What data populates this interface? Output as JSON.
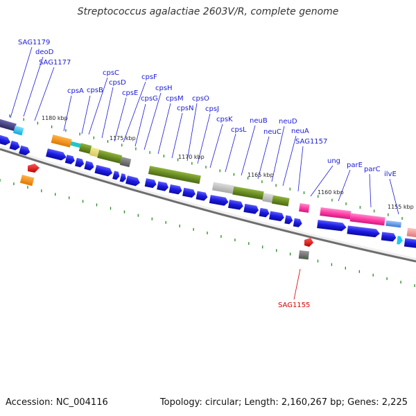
{
  "title": "Streptococcus agalactiae 2603V/R, complete genome",
  "footer": {
    "accession": "Accession: NC_004116",
    "topology": "Topology: circular; Length: 2,160,267 bp; Genes: 2,225"
  },
  "colors": {
    "backbone": "#777777",
    "forward_cds": "#1a1ae0",
    "gene_label": "#1a1ad6",
    "rna_label": "#d40000",
    "tick": "#1e8a1e",
    "cps": "#6b8e23",
    "cog_grey": "#bbbbbb",
    "cog_pink": "#ff3ea5",
    "cog_orange": "#ff8c00",
    "cog_navy": "#3d3a7a",
    "cog_cyan": "#1ec8f0"
  },
  "ticks": [
    "1180 kbp",
    "1175 kbp",
    "1170 kbp",
    "1165 kbp",
    "1160 kbp",
    "1155 kbp"
  ],
  "gene_labels": [
    {
      "key": "sag1179",
      "text": "SAG1179"
    },
    {
      "key": "deod",
      "text": "deoD"
    },
    {
      "key": "sag1177",
      "text": "SAG1177"
    },
    {
      "key": "cpsa",
      "text": "cpsA"
    },
    {
      "key": "cpsb",
      "text": "cpsB"
    },
    {
      "key": "cpsc",
      "text": "cpsC"
    },
    {
      "key": "cpsd",
      "text": "cpsD"
    },
    {
      "key": "cpse",
      "text": "cpsE"
    },
    {
      "key": "cpsf",
      "text": "cpsF"
    },
    {
      "key": "cpsg",
      "text": "cpsG"
    },
    {
      "key": "cpsh",
      "text": "cpsH"
    },
    {
      "key": "cpsm",
      "text": "cpsM"
    },
    {
      "key": "cpsn",
      "text": "cpsN"
    },
    {
      "key": "cpso",
      "text": "cpsO"
    },
    {
      "key": "cpsj",
      "text": "cpsJ"
    },
    {
      "key": "cpsk",
      "text": "cpsK"
    },
    {
      "key": "cpsl",
      "text": "cpsL"
    },
    {
      "key": "neub",
      "text": "neuB"
    },
    {
      "key": "neuc",
      "text": "neuC"
    },
    {
      "key": "neud",
      "text": "neuD"
    },
    {
      "key": "neua",
      "text": "neuA"
    },
    {
      "key": "sag1157",
      "text": "SAG1157"
    },
    {
      "key": "ung",
      "text": "ung"
    },
    {
      "key": "pare",
      "text": "parE"
    },
    {
      "key": "parc",
      "text": "parC"
    },
    {
      "key": "ilve",
      "text": "ilvE"
    },
    {
      "key": "sag1155",
      "text": "SAG1155"
    }
  ]
}
